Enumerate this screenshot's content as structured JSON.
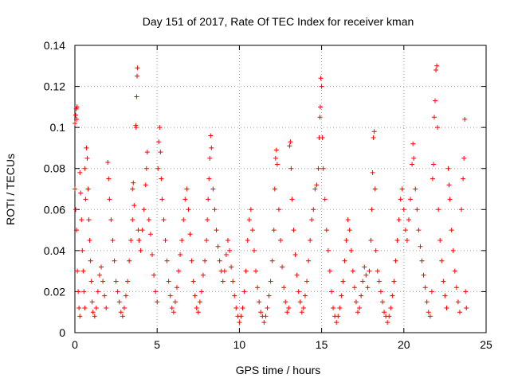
{
  "chart_data": {
    "type": "scatter",
    "title": "Day 151 of 2017, Rate Of TEC Index for receiver kman",
    "xlabel": "GPS time / hours",
    "ylabel": "ROTI / TECUs",
    "xlim": [
      0,
      25
    ],
    "ylim": [
      0,
      0.14
    ],
    "xticks": [
      0,
      5,
      10,
      15,
      20,
      25
    ],
    "xtick_labels": [
      "0",
      "5",
      "10",
      "15",
      "20",
      "25"
    ],
    "yticks": [
      0,
      0.02,
      0.04,
      0.06,
      0.08,
      0.1,
      0.12,
      0.14
    ],
    "ytick_labels": [
      "0",
      "0.02",
      "0.04",
      "0.06",
      "0.08",
      "0.1",
      "0.12",
      "0.14"
    ],
    "grid": true,
    "legend": "none",
    "marker": "plus",
    "color": "#ff0000",
    "series": [
      {
        "points": [
          [
            0.0,
            0.102
          ],
          [
            0.05,
            0.106
          ],
          [
            0.08,
            0.109
          ],
          [
            0.1,
            0.104
          ],
          [
            0.12,
            0.11
          ],
          [
            0.0,
            0.07
          ],
          [
            0.05,
            0.06
          ],
          [
            0.1,
            0.05
          ],
          [
            0.15,
            0.03
          ],
          [
            0.2,
            0.02
          ],
          [
            0.25,
            0.012
          ],
          [
            0.3,
            0.008
          ],
          [
            0.3,
            0.078
          ],
          [
            0.35,
            0.068
          ],
          [
            0.4,
            0.055
          ],
          [
            0.45,
            0.04
          ],
          [
            0.5,
            0.03
          ],
          [
            0.55,
            0.02
          ],
          [
            0.6,
            0.012
          ],
          [
            0.6,
            0.08
          ],
          [
            0.65,
            0.065
          ],
          [
            0.7,
            0.09
          ],
          [
            0.75,
            0.085
          ],
          [
            0.8,
            0.07
          ],
          [
            0.85,
            0.055
          ],
          [
            0.9,
            0.045
          ],
          [
            0.95,
            0.035
          ],
          [
            1.0,
            0.025
          ],
          [
            1.05,
            0.015
          ],
          [
            1.1,
            0.01
          ],
          [
            1.2,
            0.008
          ],
          [
            1.3,
            0.012
          ],
          [
            1.4,
            0.02
          ],
          [
            1.5,
            0.028
          ],
          [
            1.6,
            0.032
          ],
          [
            1.7,
            0.025
          ],
          [
            1.8,
            0.018
          ],
          [
            1.9,
            0.012
          ],
          [
            2.0,
            0.083
          ],
          [
            2.05,
            0.075
          ],
          [
            2.1,
            0.065
          ],
          [
            2.2,
            0.055
          ],
          [
            2.3,
            0.045
          ],
          [
            2.4,
            0.035
          ],
          [
            2.5,
            0.025
          ],
          [
            2.6,
            0.02
          ],
          [
            2.7,
            0.015
          ],
          [
            2.8,
            0.01
          ],
          [
            2.9,
            0.008
          ],
          [
            3.0,
            0.012
          ],
          [
            3.1,
            0.018
          ],
          [
            3.2,
            0.025
          ],
          [
            3.3,
            0.035
          ],
          [
            3.4,
            0.045
          ],
          [
            3.5,
            0.055
          ],
          [
            3.5,
            0.07
          ],
          [
            3.55,
            0.073
          ],
          [
            3.6,
            0.062
          ],
          [
            3.7,
            0.101
          ],
          [
            3.72,
            0.1
          ],
          [
            3.75,
            0.115
          ],
          [
            3.78,
            0.125
          ],
          [
            3.8,
            0.129
          ],
          [
            3.85,
            0.05
          ],
          [
            3.9,
            0.045
          ],
          [
            4.0,
            0.04
          ],
          [
            4.1,
            0.05
          ],
          [
            4.2,
            0.06
          ],
          [
            4.3,
            0.072
          ],
          [
            4.35,
            0.08
          ],
          [
            4.4,
            0.088
          ],
          [
            4.5,
            0.055
          ],
          [
            4.6,
            0.048
          ],
          [
            4.7,
            0.038
          ],
          [
            4.8,
            0.028
          ],
          [
            4.9,
            0.02
          ],
          [
            5.0,
            0.015
          ],
          [
            5.05,
            0.08
          ],
          [
            5.1,
            0.093
          ],
          [
            5.15,
            0.1
          ],
          [
            5.2,
            0.088
          ],
          [
            5.25,
            0.075
          ],
          [
            5.3,
            0.065
          ],
          [
            5.4,
            0.055
          ],
          [
            5.5,
            0.045
          ],
          [
            5.6,
            0.035
          ],
          [
            5.7,
            0.025
          ],
          [
            5.8,
            0.018
          ],
          [
            5.9,
            0.012
          ],
          [
            6.0,
            0.01
          ],
          [
            6.1,
            0.015
          ],
          [
            6.2,
            0.022
          ],
          [
            6.3,
            0.03
          ],
          [
            6.4,
            0.038
          ],
          [
            6.5,
            0.045
          ],
          [
            6.6,
            0.055
          ],
          [
            6.7,
            0.065
          ],
          [
            6.8,
            0.07
          ],
          [
            6.9,
            0.06
          ],
          [
            7.0,
            0.048
          ],
          [
            7.1,
            0.035
          ],
          [
            7.2,
            0.025
          ],
          [
            7.3,
            0.018
          ],
          [
            7.4,
            0.012
          ],
          [
            7.5,
            0.01
          ],
          [
            7.6,
            0.015
          ],
          [
            7.7,
            0.02
          ],
          [
            7.8,
            0.028
          ],
          [
            7.9,
            0.035
          ],
          [
            8.0,
            0.045
          ],
          [
            8.05,
            0.055
          ],
          [
            8.1,
            0.065
          ],
          [
            8.15,
            0.075
          ],
          [
            8.2,
            0.085
          ],
          [
            8.25,
            0.096
          ],
          [
            8.3,
            0.09
          ],
          [
            8.4,
            0.07
          ],
          [
            8.5,
            0.06
          ],
          [
            8.6,
            0.05
          ],
          [
            8.7,
            0.042
          ],
          [
            8.8,
            0.035
          ],
          [
            8.9,
            0.03
          ],
          [
            9.0,
            0.025
          ],
          [
            9.1,
            0.03
          ],
          [
            9.2,
            0.038
          ],
          [
            9.3,
            0.045
          ],
          [
            9.4,
            0.04
          ],
          [
            9.5,
            0.032
          ],
          [
            9.6,
            0.025
          ],
          [
            9.7,
            0.018
          ],
          [
            9.8,
            0.012
          ],
          [
            9.9,
            0.008
          ],
          [
            10.0,
            0.005
          ],
          [
            10.1,
            0.008
          ],
          [
            10.2,
            0.012
          ],
          [
            10.3,
            0.02
          ],
          [
            10.4,
            0.03
          ],
          [
            10.5,
            0.045
          ],
          [
            10.6,
            0.055
          ],
          [
            10.7,
            0.06
          ],
          [
            10.8,
            0.05
          ],
          [
            10.9,
            0.04
          ],
          [
            11.0,
            0.03
          ],
          [
            11.1,
            0.022
          ],
          [
            11.2,
            0.015
          ],
          [
            11.3,
            0.01
          ],
          [
            11.4,
            0.008
          ],
          [
            11.5,
            0.005
          ],
          [
            11.6,
            0.008
          ],
          [
            11.7,
            0.012
          ],
          [
            11.8,
            0.018
          ],
          [
            11.9,
            0.025
          ],
          [
            12.0,
            0.035
          ],
          [
            12.1,
            0.05
          ],
          [
            12.15,
            0.07
          ],
          [
            12.2,
            0.085
          ],
          [
            12.25,
            0.089
          ],
          [
            12.3,
            0.082
          ],
          [
            12.4,
            0.06
          ],
          [
            12.5,
            0.045
          ],
          [
            12.6,
            0.032
          ],
          [
            12.7,
            0.022
          ],
          [
            12.8,
            0.015
          ],
          [
            12.9,
            0.01
          ],
          [
            13.0,
            0.012
          ],
          [
            13.05,
            0.091
          ],
          [
            13.1,
            0.093
          ],
          [
            13.15,
            0.08
          ],
          [
            13.2,
            0.065
          ],
          [
            13.3,
            0.05
          ],
          [
            13.4,
            0.038
          ],
          [
            13.5,
            0.028
          ],
          [
            13.6,
            0.02
          ],
          [
            13.7,
            0.015
          ],
          [
            13.8,
            0.01
          ],
          [
            13.9,
            0.012
          ],
          [
            14.0,
            0.018
          ],
          [
            14.1,
            0.025
          ],
          [
            14.2,
            0.035
          ],
          [
            14.3,
            0.045
          ],
          [
            14.4,
            0.055
          ],
          [
            14.5,
            0.06
          ],
          [
            14.6,
            0.07
          ],
          [
            14.7,
            0.072
          ],
          [
            14.8,
            0.08
          ],
          [
            14.85,
            0.095
          ],
          [
            14.9,
            0.105
          ],
          [
            14.92,
            0.11
          ],
          [
            14.95,
            0.124
          ],
          [
            15.0,
            0.12
          ],
          [
            15.05,
            0.095
          ],
          [
            15.1,
            0.08
          ],
          [
            15.2,
            0.065
          ],
          [
            15.3,
            0.05
          ],
          [
            15.4,
            0.04
          ],
          [
            15.5,
            0.03
          ],
          [
            15.6,
            0.02
          ],
          [
            15.7,
            0.012
          ],
          [
            15.8,
            0.008
          ],
          [
            15.9,
            0.005
          ],
          [
            16.0,
            0.008
          ],
          [
            16.1,
            0.012
          ],
          [
            16.2,
            0.018
          ],
          [
            16.3,
            0.025
          ],
          [
            16.4,
            0.035
          ],
          [
            16.5,
            0.045
          ],
          [
            16.6,
            0.055
          ],
          [
            16.7,
            0.05
          ],
          [
            16.8,
            0.04
          ],
          [
            16.9,
            0.03
          ],
          [
            17.0,
            0.022
          ],
          [
            17.1,
            0.015
          ],
          [
            17.2,
            0.01
          ],
          [
            17.3,
            0.012
          ],
          [
            17.4,
            0.018
          ],
          [
            17.5,
            0.025
          ],
          [
            17.6,
            0.032
          ],
          [
            17.7,
            0.028
          ],
          [
            17.8,
            0.022
          ],
          [
            17.9,
            0.03
          ],
          [
            18.0,
            0.045
          ],
          [
            18.05,
            0.06
          ],
          [
            18.1,
            0.078
          ],
          [
            18.15,
            0.095
          ],
          [
            18.2,
            0.098
          ],
          [
            18.25,
            0.07
          ],
          [
            18.3,
            0.04
          ],
          [
            18.4,
            0.03
          ],
          [
            18.5,
            0.025
          ],
          [
            18.6,
            0.02
          ],
          [
            18.7,
            0.015
          ],
          [
            18.8,
            0.01
          ],
          [
            18.9,
            0.008
          ],
          [
            19.0,
            0.005
          ],
          [
            19.1,
            0.008
          ],
          [
            19.2,
            0.012
          ],
          [
            19.3,
            0.018
          ],
          [
            19.4,
            0.025
          ],
          [
            19.5,
            0.035
          ],
          [
            19.6,
            0.045
          ],
          [
            19.7,
            0.055
          ],
          [
            19.8,
            0.065
          ],
          [
            19.9,
            0.07
          ],
          [
            20.0,
            0.06
          ],
          [
            20.1,
            0.05
          ],
          [
            20.2,
            0.045
          ],
          [
            20.3,
            0.055
          ],
          [
            20.4,
            0.065
          ],
          [
            20.5,
            0.082
          ],
          [
            20.55,
            0.092
          ],
          [
            20.6,
            0.085
          ],
          [
            20.7,
            0.07
          ],
          [
            20.8,
            0.06
          ],
          [
            20.9,
            0.05
          ],
          [
            21.0,
            0.042
          ],
          [
            21.1,
            0.035
          ],
          [
            21.2,
            0.028
          ],
          [
            21.3,
            0.022
          ],
          [
            21.4,
            0.015
          ],
          [
            21.5,
            0.01
          ],
          [
            21.6,
            0.008
          ],
          [
            21.7,
            0.02
          ],
          [
            21.75,
            0.075
          ],
          [
            21.8,
            0.082
          ],
          [
            21.85,
            0.105
          ],
          [
            21.9,
            0.113
          ],
          [
            21.95,
            0.128
          ],
          [
            22.0,
            0.13
          ],
          [
            22.05,
            0.1
          ],
          [
            22.1,
            0.06
          ],
          [
            22.2,
            0.045
          ],
          [
            22.3,
            0.035
          ],
          [
            22.4,
            0.025
          ],
          [
            22.5,
            0.018
          ],
          [
            22.6,
            0.012
          ],
          [
            22.7,
            0.08
          ],
          [
            22.75,
            0.072
          ],
          [
            22.8,
            0.065
          ],
          [
            22.9,
            0.05
          ],
          [
            23.0,
            0.04
          ],
          [
            23.1,
            0.03
          ],
          [
            23.2,
            0.022
          ],
          [
            23.3,
            0.015
          ],
          [
            23.4,
            0.01
          ],
          [
            23.5,
            0.06
          ],
          [
            23.6,
            0.075
          ],
          [
            23.65,
            0.085
          ],
          [
            23.7,
            0.104
          ],
          [
            23.75,
            0.02
          ],
          [
            23.8,
            0.012
          ]
        ]
      }
    ]
  }
}
